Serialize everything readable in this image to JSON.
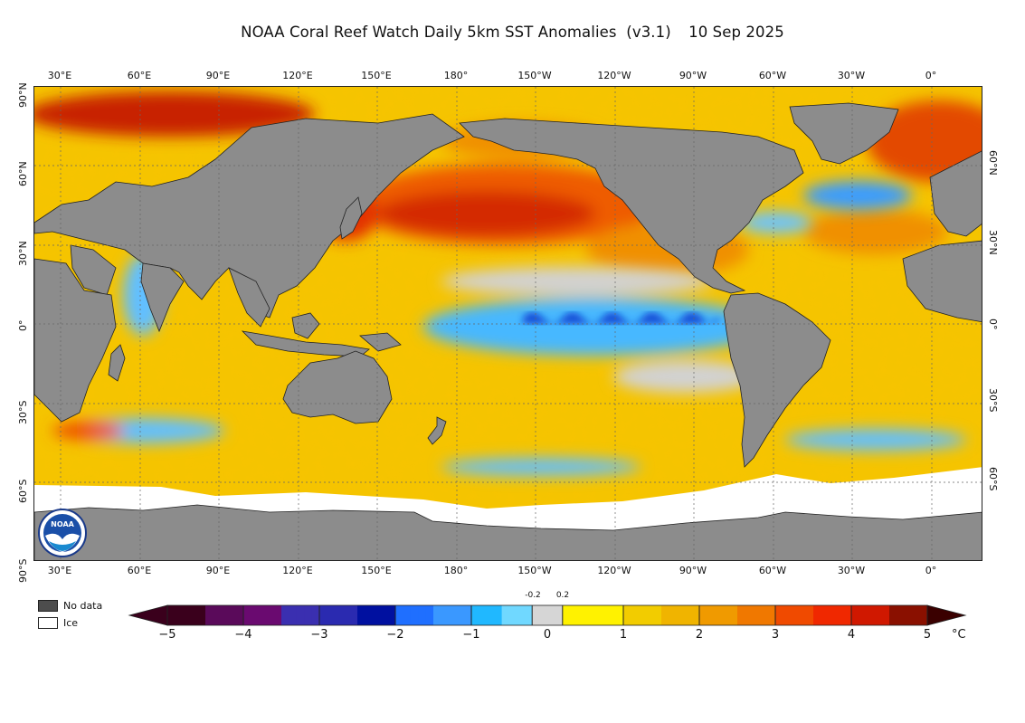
{
  "title": {
    "product": "NOAA Coral Reef Watch Daily 5km SST Anomalies",
    "version": "(v3.1)",
    "date": "10 Sep 2025"
  },
  "axes": {
    "lon_labels": [
      "30°E",
      "60°E",
      "90°E",
      "120°E",
      "150°E",
      "180°",
      "150°W",
      "120°W",
      "90°W",
      "60°W",
      "30°W",
      "0°"
    ],
    "lat_labels_left": [
      "90°N",
      "60°N",
      "30°N",
      "0°",
      "30°S",
      "60°S",
      "90°S"
    ],
    "lat_labels_right": [
      "60°N",
      "30°N",
      "0°",
      "30°S",
      "60°S"
    ],
    "grid": true
  },
  "legend": {
    "no_data_label": "No data",
    "ice_label": "Ice",
    "no_data_color": "#4d4d4d",
    "ice_color": "#ffffff",
    "land_color": "#8c8c8c"
  },
  "colorbar": {
    "ticks": [
      "−5",
      "−4",
      "−3",
      "−2",
      "−1",
      "0",
      "1",
      "2",
      "3",
      "4",
      "5"
    ],
    "near_zero_ticks": [
      "-0.2",
      "0.2"
    ],
    "unit": "°C",
    "colors": [
      "#3a001c",
      "#6a0a70",
      "#3a2fb0",
      "#0010a0",
      "#1f6fff",
      "#20b8ff",
      "#d6d6d6",
      "#f7f000",
      "#f0b400",
      "#f07800",
      "#f02800",
      "#9a1a00",
      "#3a0000"
    ]
  },
  "logo": {
    "name": "NOAA"
  }
}
